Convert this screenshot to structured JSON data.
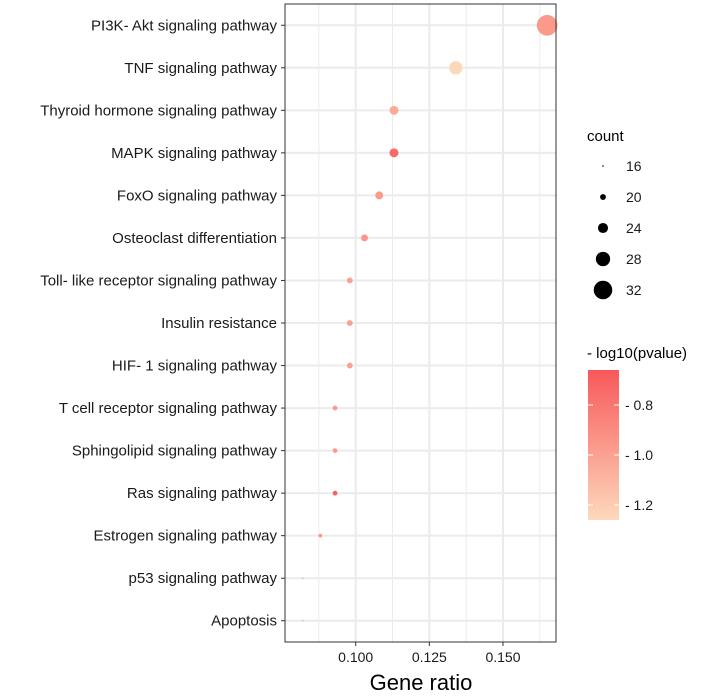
{
  "chart_data": {
    "type": "scatter",
    "xlabel": "Gene ratio",
    "ylabel": "",
    "xlim": [
      0.076,
      0.168
    ],
    "x_ticks": [
      0.1,
      0.125,
      0.15
    ],
    "x_tick_labels": [
      "0.100",
      "0.125",
      "0.150"
    ],
    "grid": true,
    "points": [
      {
        "pathway": "PI3K- Akt signaling pathway",
        "ratio": 0.165,
        "count": 34,
        "neglog10p": -0.96
      },
      {
        "pathway": "TNF signaling pathway",
        "ratio": 0.134,
        "count": 27,
        "neglog10p": -1.25
      },
      {
        "pathway": "Thyroid hormone signaling pathway",
        "ratio": 0.113,
        "count": 23,
        "neglog10p": -1.05
      },
      {
        "pathway": "MAPK signaling pathway",
        "ratio": 0.113,
        "count": 23,
        "neglog10p": -0.75
      },
      {
        "pathway": "FoxO signaling pathway",
        "ratio": 0.108,
        "count": 22,
        "neglog10p": -0.97
      },
      {
        "pathway": "Osteoclast differentiation",
        "ratio": 0.103,
        "count": 21,
        "neglog10p": -0.95
      },
      {
        "pathway": "Toll- like receptor signaling pathway",
        "ratio": 0.098,
        "count": 20,
        "neglog10p": -1.0
      },
      {
        "pathway": "Insulin resistance",
        "ratio": 0.098,
        "count": 20,
        "neglog10p": -1.0
      },
      {
        "pathway": "HIF- 1 signaling pathway",
        "ratio": 0.098,
        "count": 20,
        "neglog10p": -1.0
      },
      {
        "pathway": "T cell receptor signaling pathway",
        "ratio": 0.093,
        "count": 19,
        "neglog10p": -0.97
      },
      {
        "pathway": "Sphingolipid signaling pathway",
        "ratio": 0.093,
        "count": 19,
        "neglog10p": -0.97
      },
      {
        "pathway": "Ras signaling pathway",
        "ratio": 0.093,
        "count": 19,
        "neglog10p": -0.7
      },
      {
        "pathway": "Estrogen signaling pathway",
        "ratio": 0.088,
        "count": 18,
        "neglog10p": -0.95
      },
      {
        "pathway": "p53 signaling pathway",
        "ratio": 0.082,
        "count": 16,
        "neglog10p": -1.02
      },
      {
        "pathway": "Apoptosis",
        "ratio": 0.082,
        "count": 16,
        "neglog10p": -1.02
      }
    ],
    "legend_size": {
      "title": "count",
      "values": [
        16,
        20,
        24,
        28,
        32
      ],
      "labels": [
        "16",
        "20",
        "24",
        "28",
        "32"
      ]
    },
    "legend_color": {
      "title": "- log10(pvalue)",
      "range": [
        -1.26,
        -0.66
      ],
      "ticks": [
        -0.8,
        -1.0,
        -1.2
      ],
      "tick_labels": [
        "- 0.8",
        "- 1.0",
        "- 1.2"
      ],
      "color_high": "#F8585A",
      "color_low": "#FDD9BB"
    },
    "panel_background": "#ffffff",
    "grid_color": "#ebebeb",
    "border_color": "#333333"
  }
}
